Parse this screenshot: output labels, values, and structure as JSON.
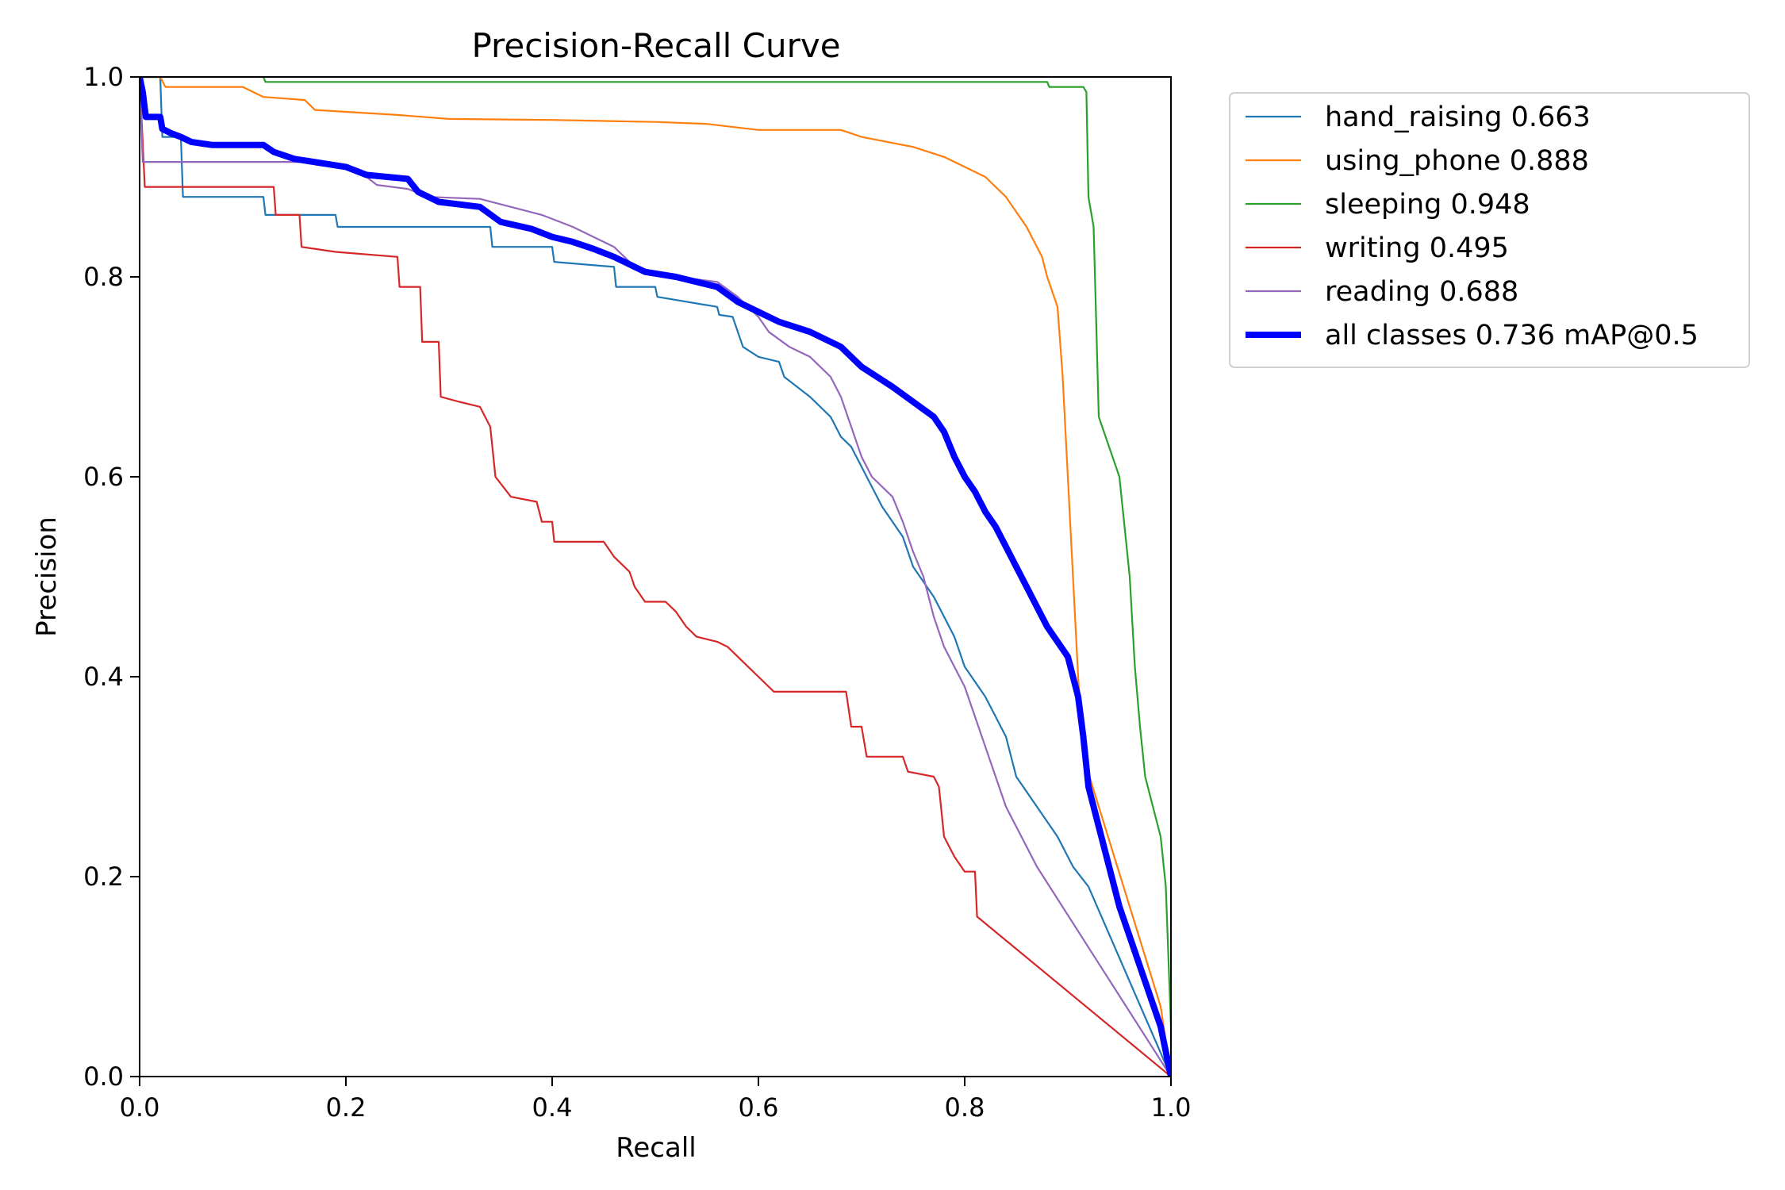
{
  "chart_data": {
    "type": "line",
    "title": "Precision-Recall Curve",
    "xlabel": "Recall",
    "ylabel": "Precision",
    "xlim": [
      0,
      1
    ],
    "ylim": [
      0,
      1
    ],
    "xticks": [
      "0.0",
      "0.2",
      "0.4",
      "0.6",
      "0.8",
      "1.0"
    ],
    "yticks": [
      "0.0",
      "0.2",
      "0.4",
      "0.6",
      "0.8",
      "1.0"
    ],
    "grid": false,
    "legend_position": "outside-top-right",
    "series": [
      {
        "name": "hand_raising 0.663",
        "color": "#1f77b4",
        "width": "thin",
        "points": [
          [
            0,
            1.0
          ],
          [
            0.02,
            1.0
          ],
          [
            0.022,
            0.94
          ],
          [
            0.04,
            0.94
          ],
          [
            0.042,
            0.88
          ],
          [
            0.12,
            0.88
          ],
          [
            0.122,
            0.862
          ],
          [
            0.19,
            0.862
          ],
          [
            0.192,
            0.85
          ],
          [
            0.34,
            0.85
          ],
          [
            0.342,
            0.83
          ],
          [
            0.4,
            0.83
          ],
          [
            0.402,
            0.815
          ],
          [
            0.46,
            0.81
          ],
          [
            0.462,
            0.79
          ],
          [
            0.5,
            0.79
          ],
          [
            0.502,
            0.78
          ],
          [
            0.56,
            0.77
          ],
          [
            0.562,
            0.762
          ],
          [
            0.575,
            0.76
          ],
          [
            0.585,
            0.73
          ],
          [
            0.6,
            0.72
          ],
          [
            0.62,
            0.715
          ],
          [
            0.625,
            0.7
          ],
          [
            0.65,
            0.68
          ],
          [
            0.67,
            0.66
          ],
          [
            0.68,
            0.64
          ],
          [
            0.69,
            0.63
          ],
          [
            0.7,
            0.61
          ],
          [
            0.71,
            0.59
          ],
          [
            0.72,
            0.57
          ],
          [
            0.74,
            0.54
          ],
          [
            0.75,
            0.51
          ],
          [
            0.77,
            0.48
          ],
          [
            0.79,
            0.44
          ],
          [
            0.8,
            0.41
          ],
          [
            0.82,
            0.38
          ],
          [
            0.84,
            0.34
          ],
          [
            0.85,
            0.3
          ],
          [
            0.87,
            0.27
          ],
          [
            0.89,
            0.24
          ],
          [
            0.905,
            0.21
          ],
          [
            0.92,
            0.19
          ],
          [
            1.0,
            0.0
          ]
        ]
      },
      {
        "name": "using_phone 0.888",
        "color": "#ff7f0e",
        "width": "thin",
        "points": [
          [
            0,
            1.0
          ],
          [
            0.02,
            1.0
          ],
          [
            0.025,
            0.99
          ],
          [
            0.1,
            0.99
          ],
          [
            0.12,
            0.98
          ],
          [
            0.16,
            0.977
          ],
          [
            0.17,
            0.967
          ],
          [
            0.25,
            0.962
          ],
          [
            0.3,
            0.958
          ],
          [
            0.4,
            0.957
          ],
          [
            0.5,
            0.955
          ],
          [
            0.55,
            0.953
          ],
          [
            0.6,
            0.947
          ],
          [
            0.68,
            0.947
          ],
          [
            0.7,
            0.94
          ],
          [
            0.75,
            0.93
          ],
          [
            0.78,
            0.92
          ],
          [
            0.82,
            0.9
          ],
          [
            0.84,
            0.88
          ],
          [
            0.86,
            0.85
          ],
          [
            0.875,
            0.82
          ],
          [
            0.88,
            0.8
          ],
          [
            0.89,
            0.77
          ],
          [
            0.895,
            0.7
          ],
          [
            0.9,
            0.6
          ],
          [
            0.905,
            0.5
          ],
          [
            0.91,
            0.4
          ],
          [
            0.915,
            0.32
          ],
          [
            0.93,
            0.27
          ],
          [
            0.945,
            0.22
          ],
          [
            0.96,
            0.17
          ],
          [
            0.975,
            0.12
          ],
          [
            0.99,
            0.07
          ],
          [
            1.0,
            0.0
          ]
        ]
      },
      {
        "name": "sleeping 0.948",
        "color": "#2ca02c",
        "width": "thin",
        "points": [
          [
            0,
            1.0
          ],
          [
            0.12,
            1.0
          ],
          [
            0.122,
            0.995
          ],
          [
            0.88,
            0.995
          ],
          [
            0.882,
            0.99
          ],
          [
            0.915,
            0.99
          ],
          [
            0.918,
            0.985
          ],
          [
            0.92,
            0.88
          ],
          [
            0.925,
            0.85
          ],
          [
            0.93,
            0.66
          ],
          [
            0.94,
            0.63
          ],
          [
            0.95,
            0.6
          ],
          [
            0.96,
            0.5
          ],
          [
            0.965,
            0.41
          ],
          [
            0.97,
            0.35
          ],
          [
            0.975,
            0.3
          ],
          [
            0.98,
            0.28
          ],
          [
            0.99,
            0.24
          ],
          [
            0.995,
            0.19
          ],
          [
            1.0,
            0.05
          ],
          [
            1.0,
            0.0
          ]
        ]
      },
      {
        "name": "writing 0.495",
        "color": "#d62728",
        "width": "thin",
        "points": [
          [
            0,
            1.0
          ],
          [
            0.005,
            0.89
          ],
          [
            0.13,
            0.89
          ],
          [
            0.132,
            0.862
          ],
          [
            0.155,
            0.862
          ],
          [
            0.157,
            0.83
          ],
          [
            0.19,
            0.825
          ],
          [
            0.25,
            0.82
          ],
          [
            0.252,
            0.79
          ],
          [
            0.272,
            0.79
          ],
          [
            0.274,
            0.735
          ],
          [
            0.29,
            0.735
          ],
          [
            0.292,
            0.68
          ],
          [
            0.31,
            0.675
          ],
          [
            0.33,
            0.67
          ],
          [
            0.34,
            0.65
          ],
          [
            0.345,
            0.6
          ],
          [
            0.36,
            0.58
          ],
          [
            0.385,
            0.575
          ],
          [
            0.39,
            0.555
          ],
          [
            0.4,
            0.555
          ],
          [
            0.402,
            0.535
          ],
          [
            0.45,
            0.535
          ],
          [
            0.46,
            0.52
          ],
          [
            0.475,
            0.505
          ],
          [
            0.48,
            0.49
          ],
          [
            0.49,
            0.475
          ],
          [
            0.51,
            0.475
          ],
          [
            0.52,
            0.465
          ],
          [
            0.53,
            0.45
          ],
          [
            0.54,
            0.44
          ],
          [
            0.56,
            0.435
          ],
          [
            0.57,
            0.43
          ],
          [
            0.58,
            0.42
          ],
          [
            0.59,
            0.41
          ],
          [
            0.6,
            0.4
          ],
          [
            0.615,
            0.385
          ],
          [
            0.685,
            0.385
          ],
          [
            0.69,
            0.35
          ],
          [
            0.7,
            0.35
          ],
          [
            0.705,
            0.32
          ],
          [
            0.74,
            0.32
          ],
          [
            0.745,
            0.305
          ],
          [
            0.77,
            0.3
          ],
          [
            0.775,
            0.29
          ],
          [
            0.78,
            0.24
          ],
          [
            0.79,
            0.22
          ],
          [
            0.8,
            0.205
          ],
          [
            0.81,
            0.205
          ],
          [
            0.812,
            0.16
          ],
          [
            1.0,
            0.0
          ]
        ]
      },
      {
        "name": "reading 0.688",
        "color": "#9467bd",
        "width": "thin",
        "points": [
          [
            0,
            1.0
          ],
          [
            0.003,
            0.915
          ],
          [
            0.17,
            0.915
          ],
          [
            0.172,
            0.912
          ],
          [
            0.2,
            0.91
          ],
          [
            0.22,
            0.9
          ],
          [
            0.23,
            0.892
          ],
          [
            0.26,
            0.888
          ],
          [
            0.28,
            0.88
          ],
          [
            0.33,
            0.878
          ],
          [
            0.36,
            0.87
          ],
          [
            0.39,
            0.862
          ],
          [
            0.42,
            0.85
          ],
          [
            0.44,
            0.84
          ],
          [
            0.46,
            0.83
          ],
          [
            0.47,
            0.82
          ],
          [
            0.48,
            0.81
          ],
          [
            0.52,
            0.8
          ],
          [
            0.56,
            0.795
          ],
          [
            0.58,
            0.78
          ],
          [
            0.6,
            0.76
          ],
          [
            0.61,
            0.745
          ],
          [
            0.63,
            0.73
          ],
          [
            0.65,
            0.72
          ],
          [
            0.67,
            0.7
          ],
          [
            0.68,
            0.68
          ],
          [
            0.69,
            0.65
          ],
          [
            0.7,
            0.62
          ],
          [
            0.71,
            0.6
          ],
          [
            0.73,
            0.58
          ],
          [
            0.74,
            0.555
          ],
          [
            0.75,
            0.525
          ],
          [
            0.76,
            0.5
          ],
          [
            0.77,
            0.46
          ],
          [
            0.78,
            0.43
          ],
          [
            0.8,
            0.39
          ],
          [
            0.81,
            0.36
          ],
          [
            0.82,
            0.33
          ],
          [
            0.83,
            0.3
          ],
          [
            0.84,
            0.27
          ],
          [
            0.85,
            0.25
          ],
          [
            0.87,
            0.21
          ],
          [
            1.0,
            0.0
          ]
        ]
      },
      {
        "name": "all classes 0.736 mAP@0.5",
        "color": "#0000ff",
        "width": "thick",
        "points": [
          [
            0,
            1.0
          ],
          [
            0.003,
            0.985
          ],
          [
            0.006,
            0.96
          ],
          [
            0.02,
            0.96
          ],
          [
            0.022,
            0.948
          ],
          [
            0.03,
            0.944
          ],
          [
            0.04,
            0.94
          ],
          [
            0.05,
            0.935
          ],
          [
            0.07,
            0.932
          ],
          [
            0.12,
            0.932
          ],
          [
            0.13,
            0.925
          ],
          [
            0.15,
            0.918
          ],
          [
            0.2,
            0.91
          ],
          [
            0.22,
            0.902
          ],
          [
            0.26,
            0.898
          ],
          [
            0.27,
            0.885
          ],
          [
            0.29,
            0.875
          ],
          [
            0.33,
            0.87
          ],
          [
            0.35,
            0.855
          ],
          [
            0.38,
            0.848
          ],
          [
            0.4,
            0.84
          ],
          [
            0.42,
            0.835
          ],
          [
            0.44,
            0.828
          ],
          [
            0.46,
            0.82
          ],
          [
            0.49,
            0.805
          ],
          [
            0.52,
            0.8
          ],
          [
            0.56,
            0.79
          ],
          [
            0.58,
            0.775
          ],
          [
            0.6,
            0.765
          ],
          [
            0.62,
            0.755
          ],
          [
            0.65,
            0.745
          ],
          [
            0.68,
            0.73
          ],
          [
            0.7,
            0.71
          ],
          [
            0.73,
            0.69
          ],
          [
            0.75,
            0.675
          ],
          [
            0.77,
            0.66
          ],
          [
            0.78,
            0.645
          ],
          [
            0.79,
            0.62
          ],
          [
            0.8,
            0.6
          ],
          [
            0.81,
            0.585
          ],
          [
            0.82,
            0.565
          ],
          [
            0.83,
            0.55
          ],
          [
            0.84,
            0.53
          ],
          [
            0.85,
            0.51
          ],
          [
            0.86,
            0.49
          ],
          [
            0.87,
            0.47
          ],
          [
            0.88,
            0.45
          ],
          [
            0.9,
            0.42
          ],
          [
            0.91,
            0.38
          ],
          [
            0.915,
            0.34
          ],
          [
            0.92,
            0.29
          ],
          [
            0.93,
            0.25
          ],
          [
            0.94,
            0.21
          ],
          [
            0.95,
            0.17
          ],
          [
            0.96,
            0.14
          ],
          [
            0.97,
            0.11
          ],
          [
            0.98,
            0.08
          ],
          [
            0.99,
            0.05
          ],
          [
            1.0,
            0.0
          ]
        ]
      }
    ]
  }
}
